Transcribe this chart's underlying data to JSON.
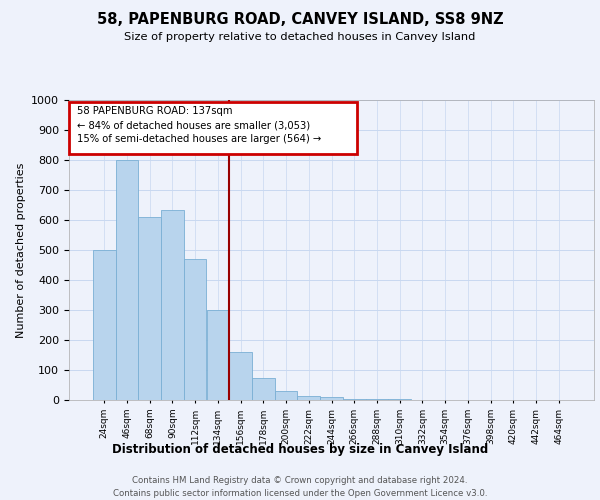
{
  "title": "58, PAPENBURG ROAD, CANVEY ISLAND, SS8 9NZ",
  "subtitle": "Size of property relative to detached houses in Canvey Island",
  "xlabel": "Distribution of detached houses by size in Canvey Island",
  "ylabel": "Number of detached properties",
  "bar_labels": [
    "24sqm",
    "46sqm",
    "68sqm",
    "90sqm",
    "112sqm",
    "134sqm",
    "156sqm",
    "178sqm",
    "200sqm",
    "222sqm",
    "244sqm",
    "266sqm",
    "288sqm",
    "310sqm",
    "332sqm",
    "354sqm",
    "376sqm",
    "398sqm",
    "420sqm",
    "442sqm",
    "464sqm"
  ],
  "bar_values": [
    500,
    800,
    610,
    635,
    470,
    300,
    160,
    75,
    30,
    15,
    10,
    5,
    3,
    2,
    1,
    1,
    0,
    0,
    0,
    0,
    0
  ],
  "bar_color": "#b8d4ed",
  "bar_edge_color": "#7aafd4",
  "vline_x": 5.5,
  "annotation_line1": "58 PAPENBURG ROAD: 137sqm",
  "annotation_line2": "← 84% of detached houses are smaller (3,053)",
  "annotation_line3": "15% of semi-detached houses are larger (564) →",
  "ylim": [
    0,
    1000
  ],
  "yticks": [
    0,
    100,
    200,
    300,
    400,
    500,
    600,
    700,
    800,
    900,
    1000
  ],
  "footer1": "Contains HM Land Registry data © Crown copyright and database right 2024.",
  "footer2": "Contains public sector information licensed under the Open Government Licence v3.0.",
  "bg_color": "#eef2fb",
  "grid_color": "#c8d8f0",
  "vline_color": "#990000",
  "box_edge_color": "#cc0000"
}
